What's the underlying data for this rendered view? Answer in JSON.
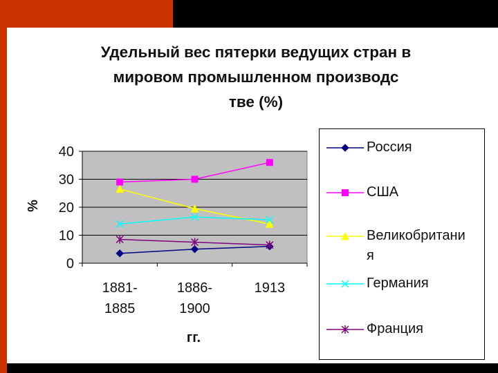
{
  "chart_data": {
    "type": "line",
    "title": "Удельный вес пятерки ведущих стран в мировом промышленном производстве (%)",
    "xlabel": "гг.",
    "ylabel": "%",
    "categories": [
      "1881-1885",
      "1886-1900",
      "1913"
    ],
    "category_lines": [
      [
        "1881-",
        "1885"
      ],
      [
        "1886-",
        "1900"
      ],
      [
        "1913"
      ]
    ],
    "ylim": [
      0,
      40
    ],
    "yticks": [
      0,
      10,
      20,
      30,
      40
    ],
    "grid": true,
    "legend_position": "right",
    "series": [
      {
        "name": "Россия",
        "values": [
          3.5,
          5,
          6
        ],
        "color": "#000080",
        "marker": "diamond"
      },
      {
        "name": "США",
        "values": [
          29,
          30,
          36
        ],
        "color": "#ff00ff",
        "marker": "square"
      },
      {
        "name": "Великобритания",
        "values": [
          26.5,
          19.5,
          14
        ],
        "color": "#ffff00",
        "marker": "triangle"
      },
      {
        "name": "Германия",
        "values": [
          14,
          16.5,
          15.5
        ],
        "color": "#00ffff",
        "marker": "x"
      },
      {
        "name": "Франция",
        "values": [
          8.5,
          7.5,
          6.5
        ],
        "color": "#800080",
        "marker": "star"
      }
    ]
  },
  "legend_labels": [
    [
      "Россия"
    ],
    [
      "США"
    ],
    [
      "Великобритани",
      "я"
    ],
    [
      "Германия"
    ],
    [
      "Франция"
    ]
  ]
}
